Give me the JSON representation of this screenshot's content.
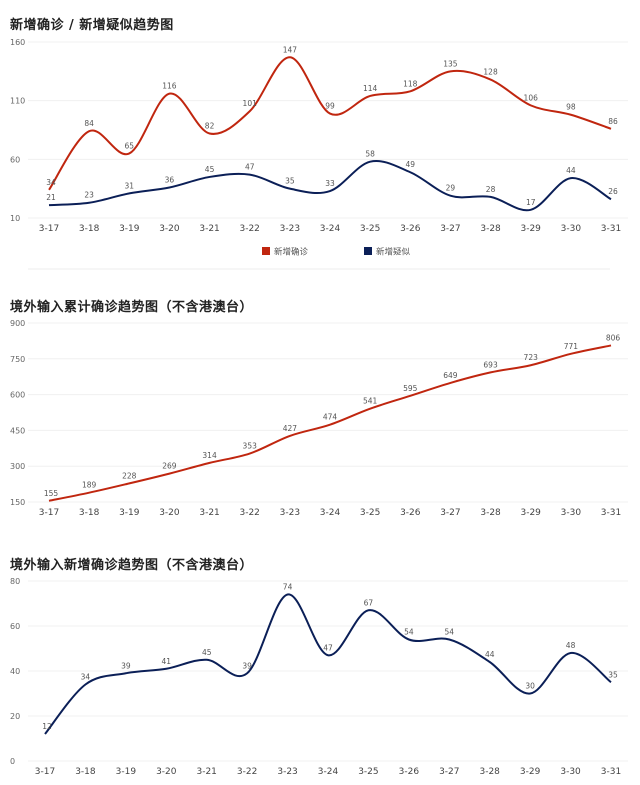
{
  "chart_data": [
    {
      "type": "line",
      "title": "新增确诊 / 新增疑似趋势图",
      "categories": [
        "3-17",
        "3-18",
        "3-19",
        "3-20",
        "3-21",
        "3-22",
        "3-23",
        "3-24",
        "3-25",
        "3-26",
        "3-27",
        "3-28",
        "3-29",
        "3-30",
        "3-31"
      ],
      "yticks": [
        10,
        60,
        110,
        160
      ],
      "ylim": [
        10,
        160
      ],
      "legend_position": "bottom-center",
      "grid": true,
      "series": [
        {
          "name": "新增确诊",
          "color": "#c0260f",
          "values": [
            34,
            84,
            65,
            116,
            82,
            101,
            147,
            99,
            114,
            118,
            135,
            128,
            106,
            98,
            86
          ]
        },
        {
          "name": "新增疑似",
          "color": "#0b1f57",
          "values": [
            21,
            23,
            31,
            36,
            45,
            47,
            35,
            33,
            58,
            49,
            29,
            28,
            17,
            44,
            26
          ]
        }
      ]
    },
    {
      "type": "line",
      "title": "境外输入累计确诊趋势图（不含港澳台）",
      "categories": [
        "3-17",
        "3-18",
        "3-19",
        "3-20",
        "3-21",
        "3-22",
        "3-23",
        "3-24",
        "3-25",
        "3-26",
        "3-27",
        "3-28",
        "3-29",
        "3-30",
        "3-31"
      ],
      "yticks": [
        150,
        300,
        450,
        600,
        750,
        900
      ],
      "ylim": [
        150,
        900
      ],
      "grid": true,
      "series": [
        {
          "color": "#c0260f",
          "values": [
            155,
            189,
            228,
            269,
            314,
            353,
            427,
            474,
            541,
            595,
            649,
            693,
            723,
            771,
            806
          ]
        }
      ]
    },
    {
      "type": "line",
      "title": "境外输入新增确诊趋势图（不含港澳台）",
      "categories": [
        "3-17",
        "3-18",
        "3-19",
        "3-20",
        "3-21",
        "3-22",
        "3-23",
        "3-24",
        "3-25",
        "3-26",
        "3-27",
        "3-28",
        "3-29",
        "3-30",
        "3-31"
      ],
      "yticks": [
        0,
        20,
        40,
        60,
        80
      ],
      "ylim": [
        0,
        80
      ],
      "grid": true,
      "series": [
        {
          "color": "#0b1f57",
          "values": [
            12,
            34,
            39,
            41,
            45,
            39,
            74,
            47,
            67,
            54,
            54,
            44,
            30,
            48,
            35
          ]
        }
      ]
    }
  ]
}
